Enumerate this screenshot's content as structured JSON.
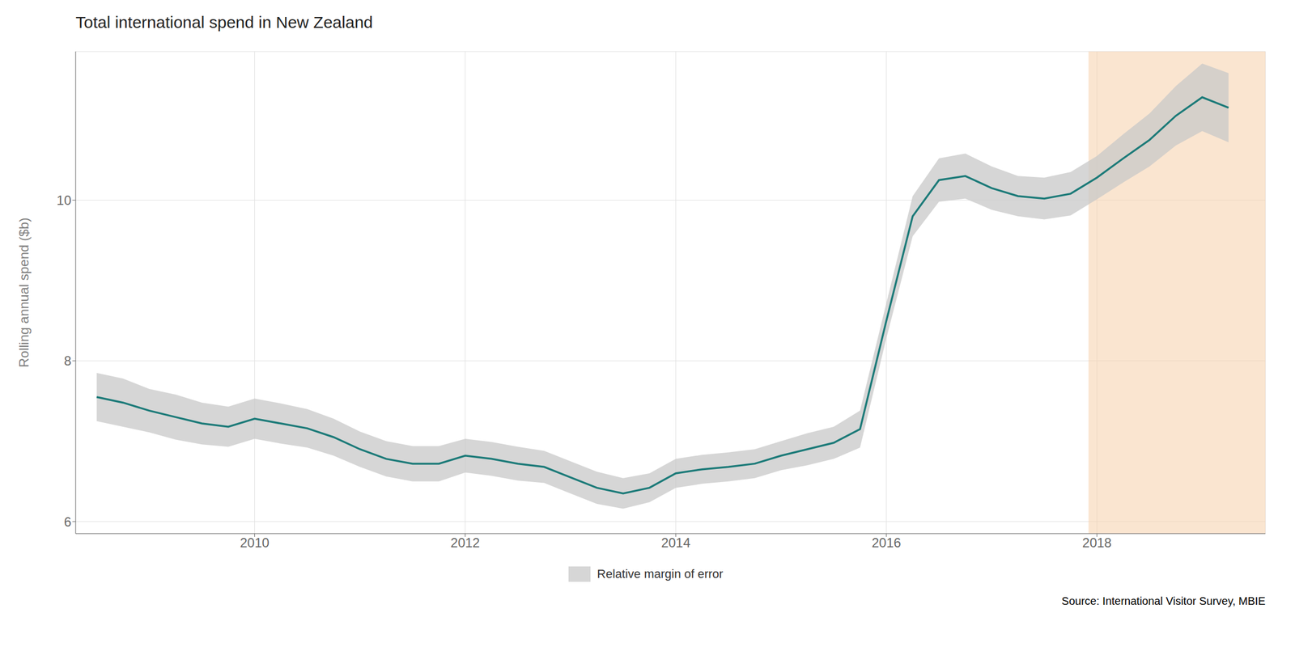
{
  "chart_data": {
    "type": "line",
    "title": "Total international spend in New Zealand",
    "ylabel": "Rolling annual spend ($b)",
    "source": "Source: International Visitor Survey, MBIE",
    "x": [
      2008.5,
      2008.75,
      2009.0,
      2009.25,
      2009.5,
      2009.75,
      2010.0,
      2010.25,
      2010.5,
      2010.75,
      2011.0,
      2011.25,
      2011.5,
      2011.75,
      2012.0,
      2012.25,
      2012.5,
      2012.75,
      2013.0,
      2013.25,
      2013.5,
      2013.75,
      2014.0,
      2014.25,
      2014.5,
      2014.75,
      2015.0,
      2015.25,
      2015.5,
      2015.75,
      2016.0,
      2016.25,
      2016.5,
      2016.75,
      2017.0,
      2017.25,
      2017.5,
      2017.75,
      2018.0,
      2018.25,
      2018.5,
      2018.75,
      2019.0,
      2019.25
    ],
    "series": [
      {
        "type": "line",
        "color": "#1b7a78",
        "values": [
          7.55,
          7.48,
          7.38,
          7.3,
          7.22,
          7.18,
          7.28,
          7.22,
          7.16,
          7.05,
          6.9,
          6.78,
          6.72,
          6.72,
          6.82,
          6.78,
          6.72,
          6.68,
          6.55,
          6.42,
          6.35,
          6.42,
          6.6,
          6.65,
          6.68,
          6.72,
          6.82,
          6.9,
          6.98,
          7.15,
          8.5,
          9.8,
          10.25,
          10.3,
          10.15,
          10.05,
          10.02,
          10.08,
          10.28,
          10.52,
          10.75,
          11.05,
          11.28,
          11.15
        ]
      },
      {
        "type": "band",
        "name": "Relative margin of error",
        "color": "#c8c8c8",
        "upper": [
          7.85,
          7.78,
          7.65,
          7.58,
          7.48,
          7.43,
          7.53,
          7.47,
          7.4,
          7.28,
          7.12,
          7.0,
          6.94,
          6.94,
          7.03,
          6.99,
          6.93,
          6.88,
          6.75,
          6.62,
          6.54,
          6.6,
          6.78,
          6.83,
          6.86,
          6.9,
          7.0,
          7.1,
          7.18,
          7.38,
          8.72,
          10.05,
          10.52,
          10.58,
          10.42,
          10.3,
          10.28,
          10.35,
          10.55,
          10.82,
          11.08,
          11.42,
          11.7,
          11.58
        ],
        "lower": [
          7.25,
          7.18,
          7.11,
          7.02,
          6.96,
          6.93,
          7.03,
          6.97,
          6.92,
          6.82,
          6.68,
          6.56,
          6.5,
          6.5,
          6.61,
          6.57,
          6.51,
          6.48,
          6.35,
          6.22,
          6.16,
          6.24,
          6.42,
          6.47,
          6.5,
          6.54,
          6.64,
          6.7,
          6.78,
          6.92,
          8.28,
          9.55,
          9.98,
          10.02,
          9.88,
          9.8,
          9.76,
          9.81,
          10.01,
          10.22,
          10.42,
          10.68,
          10.86,
          10.72
        ]
      }
    ],
    "highlight": {
      "x_start": 2017.92,
      "x_end": 2019.6,
      "color": "#f5d0a9"
    },
    "xlim": [
      2008.3,
      2019.6
    ],
    "xticks": [
      2010,
      2012,
      2014,
      2016,
      2018
    ],
    "ylim": [
      5.85,
      11.85
    ],
    "yticks": [
      6,
      8,
      10
    ],
    "grid": true,
    "legend": "bottom"
  }
}
